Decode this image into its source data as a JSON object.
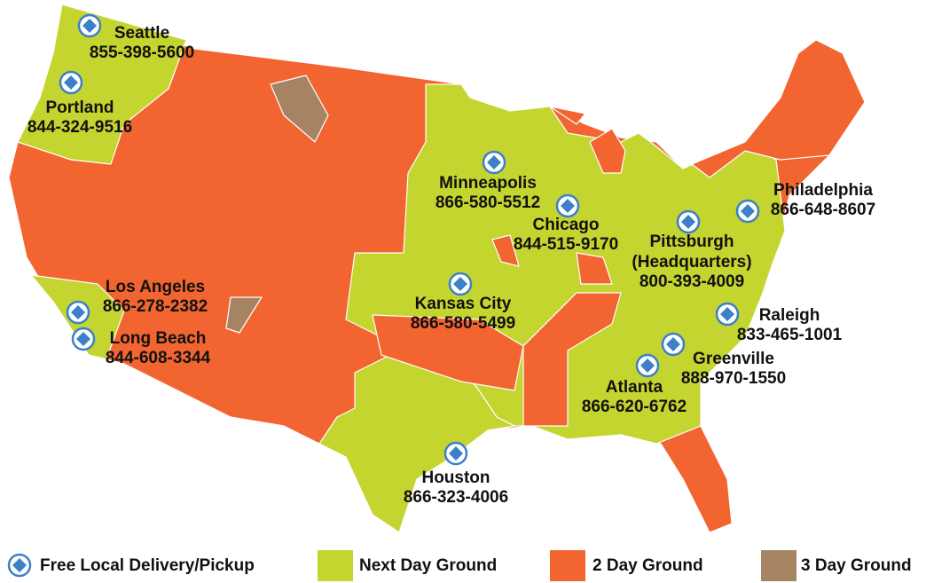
{
  "marker_color": "#3b80c8",
  "locations": [
    {
      "name": "Seattle",
      "phone": "855-398-5600"
    },
    {
      "name": "Portland",
      "phone": "844-324-9516"
    },
    {
      "name": "Minneapolis",
      "phone": "866-580-5512"
    },
    {
      "name": "Chicago",
      "phone": "844-515-9170"
    },
    {
      "name": "Philadelphia",
      "phone": "866-648-8607"
    },
    {
      "name": "Pittsburgh",
      "note": "(Headquarters)",
      "phone": "800-393-4009"
    },
    {
      "name": "Kansas City",
      "phone": "866-580-5499"
    },
    {
      "name": "Los Angeles",
      "phone": "866-278-2382"
    },
    {
      "name": "Long Beach",
      "phone": "844-608-3344"
    },
    {
      "name": "Raleigh",
      "phone": "833-465-1001"
    },
    {
      "name": "Greenville",
      "phone": "888-970-1550"
    },
    {
      "name": "Atlanta",
      "phone": "866-620-6762"
    },
    {
      "name": "Houston",
      "phone": "866-323-4006"
    }
  ],
  "legend": [
    {
      "label": "Free Local Delivery/Pickup"
    },
    {
      "label": "Next Day Ground",
      "color": "#c4d52f"
    },
    {
      "label": "2 Day Ground",
      "color": "#f26531"
    },
    {
      "label": "3 Day Ground",
      "color": "#a68463"
    }
  ]
}
